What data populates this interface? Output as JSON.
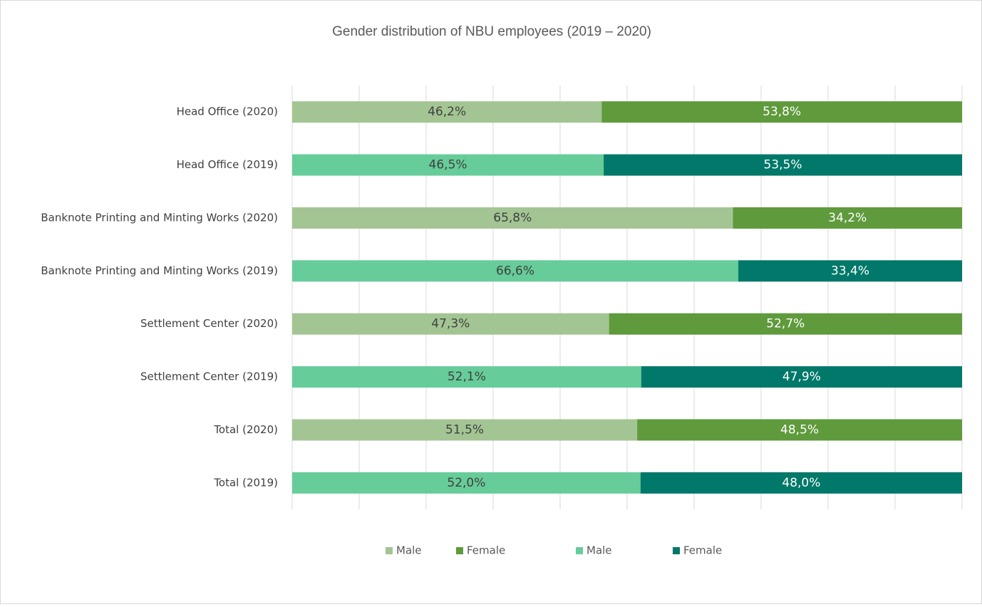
{
  "chart_data": {
    "type": "stacked_bar_horizontal",
    "title": "Gender distribution of NBU employees (2019 – 2020)",
    "categories": [
      "Head Office  (2020)",
      "Head Office  (2019)",
      "Banknote Printing and Minting Works (2020)",
      "Banknote Printing and Minting Works (2019)",
      "Settlement Center (2020)",
      "Settlement Center (2019)",
      "Total (2020)",
      "Total (2019)"
    ],
    "series": [
      {
        "name": "Male",
        "color": "#a3c593",
        "values": [
          46.2,
          null,
          65.8,
          null,
          47.3,
          null,
          51.5,
          null
        ],
        "value_labels": [
          "46,2%",
          null,
          "65,8%",
          null,
          "47,3%",
          null,
          "51,5%",
          null
        ]
      },
      {
        "name": "Female",
        "color": "#5f9a3c",
        "values": [
          53.8,
          null,
          34.2,
          null,
          52.7,
          null,
          48.5,
          null
        ],
        "value_labels": [
          "53,8%",
          null,
          "34,2%",
          null,
          "52,7%",
          null,
          "48,5%",
          null
        ]
      },
      {
        "name": "Male",
        "color": "#66cc99",
        "values": [
          null,
          46.5,
          null,
          66.6,
          null,
          52.1,
          null,
          52.0
        ],
        "value_labels": [
          null,
          "46,5%",
          null,
          "66,6%",
          null,
          "52,1%",
          null,
          "52,0%"
        ]
      },
      {
        "name": "Female",
        "color": "#00786a",
        "values": [
          null,
          53.5,
          null,
          33.4,
          null,
          47.9,
          null,
          48.0
        ],
        "value_labels": [
          null,
          "53,5%",
          null,
          "33,4%",
          null,
          "47,9%",
          null,
          "48,0%"
        ]
      }
    ],
    "xlim": [
      0,
      100
    ],
    "xticks": [
      0,
      10,
      20,
      30,
      40,
      50,
      60,
      70,
      80,
      90,
      100
    ],
    "grid": true,
    "legend": "bottom"
  }
}
